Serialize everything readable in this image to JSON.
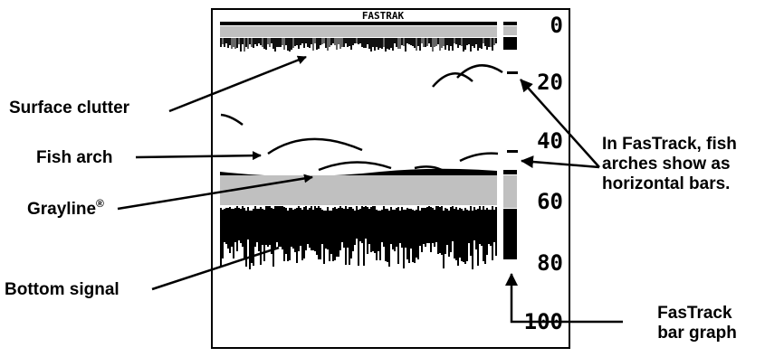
{
  "screen": {
    "title": "FASTRAK",
    "depth_scale": [
      "0",
      "20",
      "40",
      "60",
      "80",
      "100"
    ]
  },
  "callouts": {
    "surface_clutter": "Surface clutter",
    "fish_arch": "Fish arch",
    "grayline": "Grayline",
    "grayline_mark": "®",
    "bottom_signal": "Bottom signal",
    "fastrack_note": [
      "In FasTrack, fish",
      "arches show as",
      "horizontal bars."
    ],
    "fastrack_bar": [
      "FasTrack",
      "bar graph"
    ]
  }
}
